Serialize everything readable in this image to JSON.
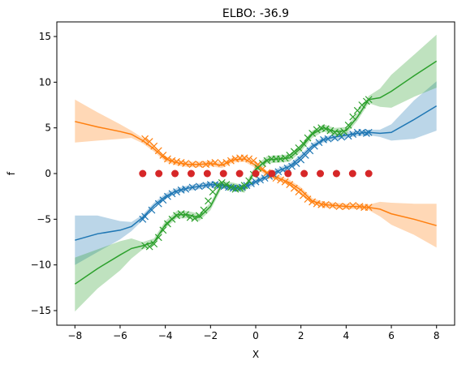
{
  "chart_data": {
    "type": "line",
    "title": "ELBO: -36.9",
    "xlabel": "X",
    "ylabel": "f",
    "xlim": [
      -8.8,
      8.8
    ],
    "ylim": [
      -16.6,
      16.6
    ],
    "xticks": [
      -8,
      -6,
      -4,
      -2,
      0,
      2,
      4,
      6,
      8
    ],
    "yticks": [
      -15,
      -10,
      -5,
      0,
      5,
      10,
      15
    ],
    "grid": false,
    "colors": {
      "blue": "#1f77b4",
      "orange": "#ff7f0e",
      "green": "#2ca02c",
      "red": "#d62728"
    },
    "series": [
      {
        "color": "blue",
        "mean": {
          "x": [
            -8,
            -7,
            -6,
            -5.5,
            -5,
            -4.5,
            -4,
            -3.5,
            -3,
            -2.5,
            -2,
            -1.5,
            -1,
            -0.5,
            0,
            0.5,
            1,
            1.5,
            2,
            2.5,
            3,
            3.5,
            4,
            4.5,
            5,
            5.5,
            6,
            7,
            8
          ],
          "y": [
            -7.3,
            -6.6,
            -6.2,
            -5.8,
            -4.8,
            -3.5,
            -2.5,
            -1.9,
            -1.6,
            -1.4,
            -1.2,
            -1.3,
            -1.6,
            -1.5,
            -0.9,
            -0.3,
            0.3,
            0.8,
            1.8,
            3.0,
            3.7,
            4.0,
            4.2,
            4.4,
            4.5,
            4.4,
            4.5,
            5.9,
            7.4
          ]
        },
        "band": {
          "x": [
            -8,
            -7,
            -6,
            -5.5,
            -5,
            -4.5,
            -4,
            -3.5,
            -3,
            -2.5,
            -2,
            -1.5,
            -1,
            -0.5,
            0,
            0.5,
            1,
            1.5,
            2,
            2.5,
            3,
            3.5,
            4,
            4.5,
            5,
            5.5,
            6,
            7,
            8
          ],
          "lower": [
            -10.0,
            -8.6,
            -7.2,
            -6.3,
            -5.1,
            -3.8,
            -2.8,
            -2.2,
            -1.9,
            -1.7,
            -1.5,
            -1.6,
            -1.9,
            -1.8,
            -1.2,
            -0.6,
            0.0,
            0.5,
            1.5,
            2.7,
            3.4,
            3.7,
            3.9,
            4.1,
            4.2,
            4.0,
            3.6,
            3.8,
            4.7
          ],
          "upper": [
            -4.6,
            -4.6,
            -5.2,
            -5.3,
            -4.5,
            -3.2,
            -2.2,
            -1.6,
            -1.3,
            -1.1,
            -0.9,
            -1.0,
            -1.3,
            -1.2,
            -0.6,
            0.0,
            0.6,
            1.1,
            2.1,
            3.3,
            4.0,
            4.3,
            4.5,
            4.7,
            4.8,
            4.8,
            5.4,
            8.0,
            10.1
          ]
        },
        "observations": {
          "x": [
            -5.0,
            -4.9,
            -4.6,
            -4.3,
            -4.1,
            -3.9,
            -3.7,
            -3.5,
            -3.3,
            -3.1,
            -2.8,
            -2.5,
            -2.2,
            -2.0,
            -1.8,
            -1.6,
            -1.4,
            -1.2,
            -1.0,
            -0.8,
            -0.6,
            -0.4,
            -0.2,
            0.0,
            0.2,
            0.4,
            0.6,
            0.8,
            1.0,
            1.2,
            1.4,
            1.6,
            1.8,
            2.0,
            2.2,
            2.4,
            2.6,
            2.8,
            3.0,
            3.2,
            3.5,
            3.8,
            4.1,
            4.3,
            4.5,
            4.7,
            4.9,
            5.0
          ],
          "y": [
            -5.0,
            -4.7,
            -4.0,
            -3.3,
            -2.9,
            -2.5,
            -2.2,
            -2.0,
            -1.8,
            -1.7,
            -1.5,
            -1.4,
            -1.3,
            -1.2,
            -1.2,
            -1.3,
            -1.4,
            -1.5,
            -1.6,
            -1.6,
            -1.5,
            -1.3,
            -1.1,
            -0.9,
            -0.7,
            -0.5,
            -0.3,
            -0.1,
            0.2,
            0.4,
            0.6,
            0.8,
            1.1,
            1.5,
            2.0,
            2.5,
            3.0,
            3.4,
            3.7,
            3.8,
            3.9,
            4.0,
            4.1,
            4.3,
            4.5,
            4.5,
            4.4,
            4.5
          ]
        }
      },
      {
        "color": "orange",
        "mean": {
          "x": [
            -8,
            -7,
            -6,
            -5.5,
            -5,
            -4.5,
            -4,
            -3.5,
            -3,
            -2.5,
            -2,
            -1.5,
            -1,
            -0.5,
            0,
            0.5,
            1,
            1.5,
            2,
            2.5,
            3,
            3.5,
            4,
            4.5,
            5,
            5.5,
            6,
            7,
            8
          ],
          "y": [
            5.7,
            5.1,
            4.6,
            4.3,
            3.6,
            2.7,
            1.6,
            1.2,
            1.0,
            1.0,
            1.1,
            0.9,
            1.5,
            1.6,
            0.9,
            0.0,
            -0.5,
            -1.0,
            -1.8,
            -3.0,
            -3.4,
            -3.5,
            -3.6,
            -3.6,
            -3.7,
            -3.9,
            -4.4,
            -5.0,
            -5.7
          ]
        },
        "band": {
          "x": [
            -8,
            -7,
            -6,
            -5.5,
            -5,
            -4.5,
            -4,
            -3.5,
            -3,
            -2.5,
            -2,
            -1.5,
            -1,
            -0.5,
            0,
            0.5,
            1,
            1.5,
            2,
            2.5,
            3,
            3.5,
            4,
            4.5,
            5,
            5.5,
            6,
            7,
            8
          ],
          "lower": [
            3.4,
            3.6,
            3.8,
            3.9,
            3.3,
            2.4,
            1.3,
            0.9,
            0.7,
            0.7,
            0.8,
            0.6,
            1.2,
            1.3,
            0.6,
            -0.3,
            -0.8,
            -1.3,
            -2.1,
            -3.3,
            -3.7,
            -3.8,
            -3.9,
            -3.9,
            -4.0,
            -4.7,
            -5.6,
            -6.7,
            -8.1
          ],
          "upper": [
            8.1,
            6.7,
            5.4,
            4.7,
            3.9,
            3.0,
            1.9,
            1.5,
            1.3,
            1.3,
            1.4,
            1.2,
            1.8,
            1.9,
            1.2,
            0.3,
            -0.2,
            -0.7,
            -1.5,
            -2.7,
            -3.1,
            -3.2,
            -3.3,
            -3.3,
            -3.4,
            -3.1,
            -3.2,
            -3.3,
            -3.3
          ]
        },
        "observations": {
          "x": [
            -4.9,
            -4.7,
            -4.5,
            -4.3,
            -4.1,
            -3.9,
            -3.7,
            -3.5,
            -3.3,
            -3.1,
            -2.8,
            -2.5,
            -2.2,
            -2.0,
            -1.8,
            -1.5,
            -1.3,
            -1.1,
            -0.9,
            -0.7,
            -0.5,
            -0.3,
            -0.1,
            0.1,
            0.3,
            0.5,
            0.7,
            0.9,
            1.1,
            1.3,
            1.5,
            1.7,
            1.9,
            2.1,
            2.3,
            2.5,
            2.7,
            2.9,
            3.1,
            3.4,
            3.7,
            4.0,
            4.3,
            4.6,
            4.8,
            5.0
          ],
          "y": [
            3.8,
            3.5,
            3.0,
            2.5,
            2.0,
            1.6,
            1.4,
            1.3,
            1.2,
            1.1,
            1.0,
            1.0,
            1.0,
            1.1,
            1.2,
            1.1,
            1.2,
            1.4,
            1.6,
            1.7,
            1.7,
            1.6,
            1.4,
            1.0,
            0.5,
            0.1,
            -0.2,
            -0.5,
            -0.7,
            -0.9,
            -1.2,
            -1.6,
            -2.0,
            -2.4,
            -2.8,
            -3.1,
            -3.3,
            -3.4,
            -3.4,
            -3.5,
            -3.6,
            -3.6,
            -3.5,
            -3.6,
            -3.7,
            -3.7
          ]
        }
      },
      {
        "color": "green",
        "mean": {
          "x": [
            -8,
            -7,
            -6,
            -5.5,
            -5,
            -4.5,
            -4,
            -3.5,
            -3,
            -2.5,
            -2,
            -1.5,
            -1,
            -0.5,
            0,
            0.5,
            1,
            1.5,
            2,
            2.5,
            3,
            3.5,
            4,
            4.5,
            5,
            5.5,
            6,
            7,
            8
          ],
          "y": [
            -12.1,
            -10.4,
            -8.9,
            -8.2,
            -7.9,
            -7.5,
            -5.6,
            -4.5,
            -4.5,
            -4.8,
            -3.6,
            -1.2,
            -1.4,
            -1.7,
            0.5,
            1.5,
            1.6,
            1.7,
            2.8,
            4.3,
            5.0,
            4.6,
            4.7,
            6.2,
            8.1,
            8.3,
            9.0,
            10.7,
            12.3
          ]
        },
        "band": {
          "x": [
            -8,
            -7,
            -6,
            -5.5,
            -5,
            -4.5,
            -4,
            -3.5,
            -3,
            -2.5,
            -2,
            -1.5,
            -1,
            -0.5,
            0,
            0.5,
            1,
            1.5,
            2,
            2.5,
            3,
            3.5,
            4,
            4.5,
            5,
            5.5,
            6,
            7,
            8
          ],
          "lower": [
            -15.1,
            -12.6,
            -10.6,
            -9.3,
            -8.3,
            -7.9,
            -6.0,
            -4.9,
            -4.9,
            -5.2,
            -4.0,
            -1.6,
            -1.8,
            -2.1,
            0.1,
            1.1,
            1.2,
            1.3,
            2.4,
            3.9,
            4.6,
            4.2,
            4.3,
            5.8,
            7.7,
            7.3,
            7.2,
            8.4,
            9.4
          ],
          "upper": [
            -9.2,
            -8.3,
            -7.4,
            -7.1,
            -7.5,
            -7.1,
            -5.2,
            -4.1,
            -4.1,
            -4.4,
            -3.2,
            -0.8,
            -1.0,
            -1.3,
            0.9,
            1.9,
            2.0,
            2.1,
            3.2,
            4.7,
            5.4,
            5.0,
            5.1,
            6.6,
            8.5,
            9.3,
            10.8,
            13.0,
            15.2
          ]
        },
        "observations": {
          "x": [
            -4.9,
            -4.7,
            -4.5,
            -4.3,
            -4.1,
            -3.9,
            -3.7,
            -3.5,
            -3.3,
            -3.1,
            -2.9,
            -2.7,
            -2.5,
            -2.3,
            -2.1,
            -1.9,
            -1.7,
            -1.5,
            -1.3,
            -1.1,
            -0.9,
            -0.7,
            -0.5,
            -0.3,
            -0.1,
            0.1,
            0.3,
            0.5,
            0.7,
            0.9,
            1.1,
            1.3,
            1.5,
            1.7,
            1.9,
            2.1,
            2.3,
            2.5,
            2.7,
            2.9,
            3.1,
            3.3,
            3.5,
            3.7,
            3.9,
            4.1,
            4.3,
            4.5,
            4.7,
            4.9,
            5.0
          ],
          "y": [
            -7.9,
            -8.0,
            -7.7,
            -7.0,
            -6.2,
            -5.5,
            -5.0,
            -4.6,
            -4.4,
            -4.5,
            -4.8,
            -4.9,
            -4.6,
            -4.0,
            -3.0,
            -2.0,
            -1.3,
            -1.0,
            -1.2,
            -1.5,
            -1.7,
            -1.6,
            -1.3,
            -0.8,
            -0.1,
            0.6,
            1.1,
            1.4,
            1.6,
            1.6,
            1.6,
            1.7,
            2.0,
            2.4,
            2.8,
            3.3,
            3.9,
            4.4,
            4.8,
            5.0,
            4.9,
            4.7,
            4.5,
            4.4,
            4.6,
            5.3,
            6.2,
            6.9,
            7.5,
            7.9,
            8.1
          ]
        }
      }
    ],
    "inducing_points": {
      "color": "red",
      "x": [
        -5.0,
        -4.2857,
        -3.5714,
        -2.8571,
        -2.1429,
        -1.4286,
        -0.7143,
        0.0,
        0.7143,
        1.4286,
        2.1429,
        2.8571,
        3.5714,
        4.2857,
        5.0
      ],
      "y": [
        0,
        0,
        0,
        0,
        0,
        0,
        0,
        0,
        0,
        0,
        0,
        0,
        0,
        0,
        0
      ]
    }
  }
}
